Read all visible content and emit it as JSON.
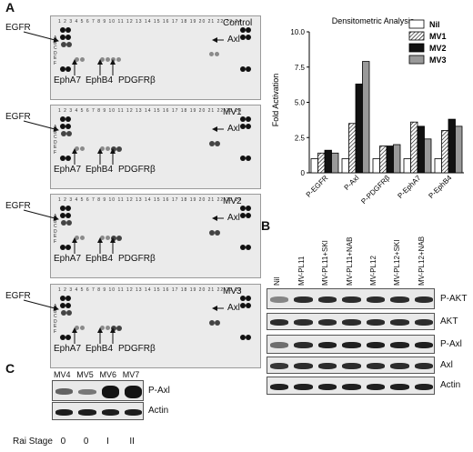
{
  "panels": {
    "A": "A",
    "B": "B",
    "C": "C"
  },
  "array_panels": [
    {
      "condition": "Control",
      "egfr": "EGFR",
      "axl": "Axl",
      "epha7": "EphA7",
      "ephb4": "EphB4",
      "pdgfr": "PDGFRβ"
    },
    {
      "condition": "MV1",
      "egfr": "EGFR",
      "axl": "Axl",
      "epha7": "EphA7",
      "ephb4": "EphB4",
      "pdgfr": "PDGFRβ"
    },
    {
      "condition": "MV2",
      "egfr": "EGFR",
      "axl": "Axl",
      "epha7": "EphA7",
      "ephb4": "EphB4",
      "pdgfr": "PDGFRβ"
    },
    {
      "condition": "MV3",
      "egfr": "EGFR",
      "axl": "Axl",
      "epha7": "EphA7",
      "ephb4": "EphB4",
      "pdgfr": "PDGFRβ"
    }
  ],
  "array_row_letters": "A\nB\nC\nD\nE\nF",
  "chart_data": {
    "type": "bar",
    "title": "Densitometric Analysis",
    "ylabel": "Fold Activation",
    "xlabel": "",
    "ylim": [
      0,
      10
    ],
    "yticks": [
      "0",
      "2.5",
      "5.0",
      "7.5",
      "10.0"
    ],
    "categories": [
      "P-EGFR",
      "P-Axl",
      "P-PDGFRβ",
      "P-EphA7",
      "P-EphB4"
    ],
    "series": [
      {
        "name": "Nil",
        "values": [
          1.0,
          1.0,
          1.0,
          1.0,
          1.0
        ],
        "color": "#ffffff"
      },
      {
        "name": "MV1",
        "values": [
          1.4,
          3.5,
          1.9,
          3.6,
          3.0
        ],
        "color": "hatch"
      },
      {
        "name": "MV2",
        "values": [
          1.6,
          6.3,
          1.9,
          3.3,
          3.8
        ],
        "color": "#111111"
      },
      {
        "name": "MV3",
        "values": [
          1.4,
          7.9,
          2.0,
          2.4,
          3.3
        ],
        "color": "#999999"
      }
    ],
    "legend_position": "top-right"
  },
  "blot_B": {
    "lanes": [
      "Nil",
      "MV-PL11",
      "MV-PL11+SKI",
      "MV-PL11+NAB",
      "MV-PL12",
      "MV-PL12+SKI",
      "MV-PL12+NAB"
    ],
    "rows": [
      "P-AKT",
      "AKT",
      "P-Axl",
      "Axl",
      "Actin"
    ]
  },
  "blot_C": {
    "lanes": [
      "MV4",
      "MV5",
      "MV6",
      "MV7"
    ],
    "rows": [
      "P-Axl",
      "Actin"
    ],
    "rai_label": "Rai Stage",
    "rai_values": [
      "0",
      "0",
      "I",
      "II"
    ]
  }
}
